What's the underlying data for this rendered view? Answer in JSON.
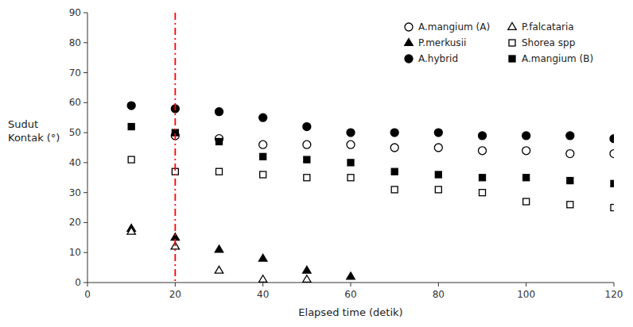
{
  "chart_data": {
    "type": "scatter",
    "xlabel": "Elapsed time (detik)",
    "ylabel": "Sudut\nKontak (°)",
    "x": [
      10,
      20,
      30,
      40,
      50,
      60,
      70,
      80,
      90,
      100,
      110,
      120
    ],
    "series": [
      {
        "name": "A.mangium (A)",
        "marker": "circle",
        "color": "white",
        "values": [
          null,
          49,
          48,
          46,
          46,
          46,
          45,
          45,
          44,
          44,
          43,
          43
        ]
      },
      {
        "name": "P.merkusii",
        "marker": "triangle",
        "color": "black",
        "values": [
          18,
          15,
          11,
          8,
          4,
          2,
          null,
          null,
          null,
          null,
          null,
          null
        ]
      },
      {
        "name": "A.hybrid",
        "marker": "circle",
        "color": "black",
        "values": [
          59,
          58,
          57,
          55,
          52,
          50,
          50,
          50,
          49,
          49,
          49,
          48
        ]
      },
      {
        "name": "P.falcataria",
        "marker": "triangle",
        "color": "white",
        "values": [
          17,
          12,
          4,
          1,
          1,
          null,
          null,
          null,
          null,
          null,
          null,
          null
        ]
      },
      {
        "name": "Shorea spp",
        "marker": "square",
        "color": "white",
        "values": [
          41,
          37,
          37,
          36,
          35,
          35,
          31,
          31,
          30,
          27,
          26,
          25
        ]
      },
      {
        "name": "A.mangium (B)",
        "marker": "square",
        "color": "black",
        "values": [
          52,
          50,
          47,
          42,
          41,
          40,
          37,
          36,
          35,
          35,
          34,
          33
        ]
      }
    ],
    "vline": {
      "x": 20,
      "color": "red",
      "line_style": "dash-dot"
    },
    "xlim": [
      0,
      120
    ],
    "ylim": [
      0,
      90
    ],
    "xticks": [
      0,
      20,
      40,
      60,
      80,
      100,
      120
    ],
    "yticks": [
      0,
      10,
      20,
      30,
      40,
      50,
      60,
      70,
      80,
      90
    ],
    "grid": false,
    "legend": "upper right"
  }
}
